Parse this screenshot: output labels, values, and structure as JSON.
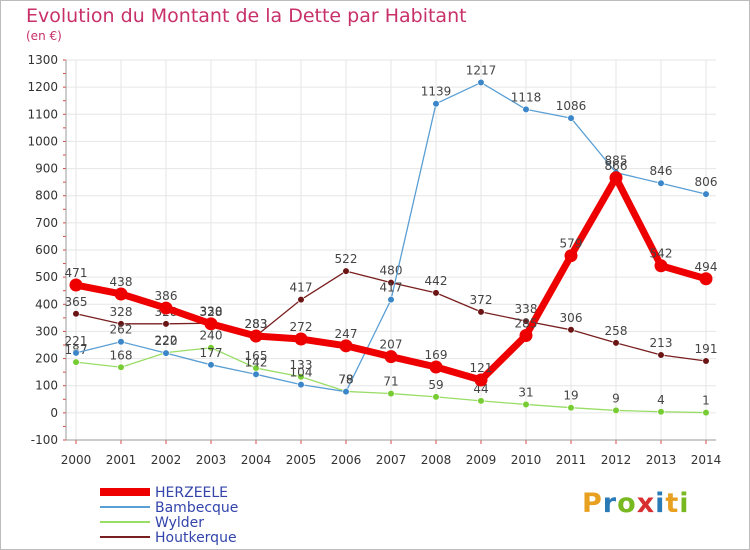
{
  "header": {
    "title": "Evolution du Montant de la Dette par Habitant",
    "subtitle": "(en €)"
  },
  "logo": {
    "text": "Proxiti",
    "colors": [
      "#e8a020",
      "#2a7ab8",
      "#78b820",
      "#d83030",
      "#2a7ab8",
      "#e8a020",
      "#78b820"
    ]
  },
  "chart_data": {
    "type": "line",
    "x": [
      "2000",
      "2001",
      "2002",
      "2003",
      "2004",
      "2005",
      "2006",
      "2007",
      "2008",
      "2009",
      "2010",
      "2011",
      "2012",
      "2013",
      "2014"
    ],
    "ylim": [
      -100,
      1300
    ],
    "yticks": [
      -100,
      0,
      100,
      200,
      300,
      400,
      500,
      600,
      700,
      800,
      900,
      1000,
      1100,
      1200,
      1300
    ],
    "grid": true,
    "legend": "bottom-left",
    "series": [
      {
        "name": "Wylder",
        "color": "#99dd66",
        "markerColor": "#77cc33",
        "values": [
          187,
          168,
          222,
          240,
          165,
          133,
          79,
          71,
          59,
          44,
          31,
          19,
          9,
          4,
          1
        ]
      },
      {
        "name": "Houtkerque",
        "color": "#7a1f1f",
        "markerColor": "#6a1414",
        "values": [
          365,
          328,
          328,
          330,
          283,
          417,
          522,
          480,
          442,
          372,
          338,
          306,
          258,
          213,
          191
        ]
      },
      {
        "name": "Bambecque",
        "color": "#5a9fd4",
        "markerColor": "#3a86c8",
        "values": [
          221,
          262,
          220,
          177,
          142,
          104,
          78,
          417,
          1139,
          1217,
          1118,
          1086,
          885,
          846,
          806
        ]
      },
      {
        "name": "HERZEELE",
        "color": "#ee0000",
        "markerColor": "#ee0000",
        "values": [
          471,
          438,
          386,
          328,
          283,
          272,
          247,
          207,
          169,
          121,
          285,
          579,
          866,
          542,
          494
        ]
      }
    ]
  }
}
